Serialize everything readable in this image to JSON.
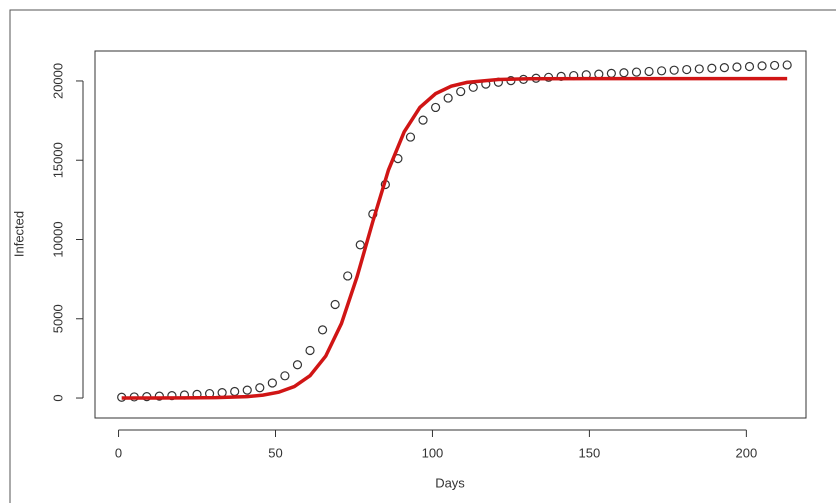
{
  "chart_data": {
    "type": "scatter-line",
    "x_label": "Days",
    "y_label": "Infected",
    "xlim": [
      -7.5,
      219
    ],
    "ylim": [
      -1260,
      21890
    ],
    "xticks": [
      0,
      50,
      100,
      150,
      200
    ],
    "yticks": [
      0,
      5000,
      10000,
      15000,
      20000
    ],
    "series": [
      {
        "kind": "points",
        "color": "#333333",
        "x": [
          1,
          5,
          9,
          13,
          17,
          21,
          25,
          29,
          33,
          37,
          41,
          45,
          49,
          53,
          57,
          61,
          65,
          69,
          73,
          77,
          81,
          85,
          89,
          93,
          97,
          101,
          105,
          109,
          113,
          117,
          121,
          125,
          129,
          133,
          137,
          141,
          145,
          149,
          153,
          157,
          161,
          165,
          169,
          173,
          177,
          181,
          185,
          189,
          193,
          197,
          201,
          205,
          209,
          213
        ],
        "values": [
          50,
          70,
          90,
          120,
          150,
          190,
          230,
          280,
          340,
          410,
          500,
          650,
          950,
          1400,
          2100,
          3000,
          4300,
          5900,
          7700,
          9660,
          11610,
          13470,
          15100,
          16460,
          17530,
          18330,
          18920,
          19330,
          19600,
          19800,
          19920,
          20020,
          20100,
          20170,
          20230,
          20290,
          20340,
          20390,
          20430,
          20480,
          20520,
          20560,
          20600,
          20640,
          20680,
          20720,
          20760,
          20800,
          20840,
          20880,
          20910,
          20950,
          20980,
          21010
        ]
      },
      {
        "kind": "line",
        "color": "#d01515",
        "x": [
          1,
          11,
          21,
          31,
          41,
          46,
          51,
          56,
          61,
          66,
          71,
          76,
          81,
          86,
          91,
          96,
          101,
          106,
          111,
          121,
          131,
          151,
          181,
          213
        ],
        "values": [
          0,
          1,
          6,
          23,
          92,
          183,
          366,
          725,
          1409,
          2644,
          4697,
          7660,
          11130,
          14390,
          16790,
          18330,
          19200,
          19670,
          19910,
          20090,
          20140,
          20150,
          20150,
          20150
        ]
      }
    ]
  }
}
